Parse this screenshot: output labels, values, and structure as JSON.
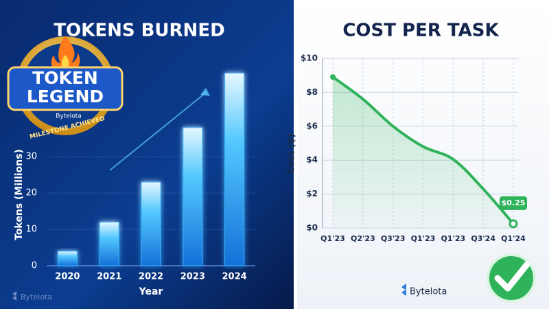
{
  "chart_data": [
    {
      "type": "bar",
      "title": "TOKENS BURNED",
      "y_label": "Tokens (Millions)",
      "x_label": "Year",
      "categories": [
        "2020",
        "2021",
        "2022",
        "2023",
        "2024"
      ],
      "values": [
        4,
        12,
        23,
        38,
        53
      ],
      "color": "#3ab8ff",
      "ylim": [
        0,
        58
      ],
      "yticks": [
        0,
        10,
        20,
        30
      ],
      "grid": true
    },
    {
      "type": "line",
      "title": "COST PER TASK",
      "y_label": "Cost ($)",
      "categories": [
        "Q1'23",
        "Q2'23",
        "Q3'23",
        "Q1'23",
        "Q1'23",
        "Q3'24",
        "Q1'24"
      ],
      "values": [
        8.9,
        7.6,
        6.0,
        4.8,
        4.05,
        2.3,
        0.25
      ],
      "value_labels": [
        null,
        null,
        null,
        null,
        null,
        null,
        "$0.25"
      ],
      "color": "#2eb35a",
      "ylim": [
        0,
        10
      ],
      "yticks": [
        {
          "value": 0,
          "label": "$0"
        },
        {
          "value": 2,
          "label": "$2"
        },
        {
          "value": 4,
          "label": "$4"
        },
        {
          "value": 6,
          "label": "$6"
        },
        {
          "value": 8,
          "label": "$8"
        },
        {
          "value": 10,
          "label": "$10"
        }
      ],
      "grid": true
    }
  ],
  "badge": {
    "line1": "TOKEN",
    "line2": "LEGEND",
    "brand": "Bytelota",
    "ribbon": "MILESTONE ACHIEVED"
  },
  "brand_left": "Bytelota",
  "brand_right": "Bytelota"
}
